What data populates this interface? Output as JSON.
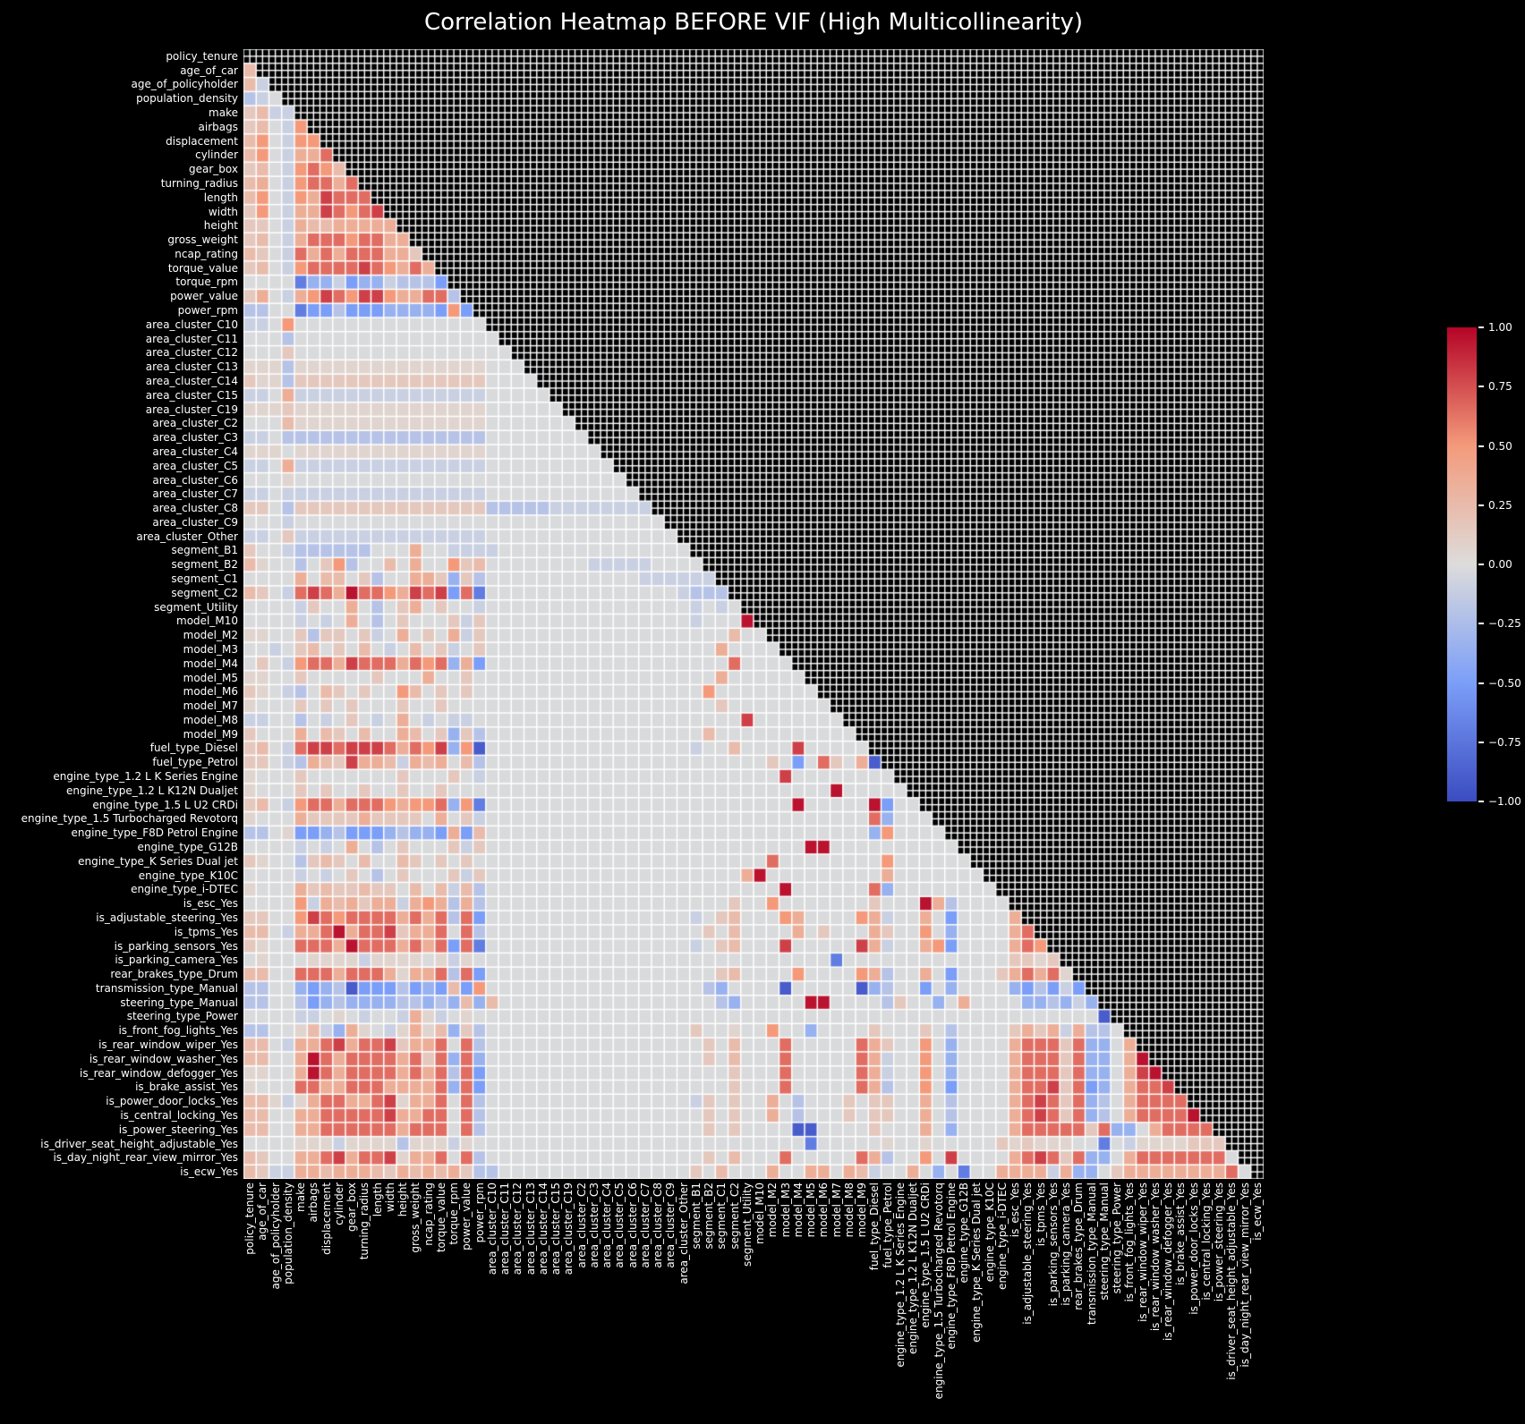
{
  "title": "Correlation Heatmap BEFORE VIF (High Multicollinearity)",
  "chart_data": {
    "type": "heatmap",
    "title": "Correlation Heatmap BEFORE VIF (High Multicollinearity)",
    "mask": "upper triangle including diagonal (shown as black cells with fine white grid)",
    "legend_position": "right colorbar",
    "grid": "white cell borders",
    "value_range": [
      -1,
      1
    ],
    "variables": [
      "policy_tenure",
      "age_of_car",
      "age_of_policyholder",
      "population_density",
      "make",
      "airbags",
      "displacement",
      "cylinder",
      "gear_box",
      "turning_radius",
      "length",
      "width",
      "height",
      "gross_weight",
      "ncap_rating",
      "torque_value",
      "torque_rpm",
      "power_value",
      "power_rpm",
      "area_cluster_C10",
      "area_cluster_C11",
      "area_cluster_C12",
      "area_cluster_C13",
      "area_cluster_C14",
      "area_cluster_C15",
      "area_cluster_C19",
      "area_cluster_C2",
      "area_cluster_C3",
      "area_cluster_C4",
      "area_cluster_C5",
      "area_cluster_C6",
      "area_cluster_C7",
      "area_cluster_C8",
      "area_cluster_C9",
      "area_cluster_Other",
      "segment_B1",
      "segment_B2",
      "segment_C1",
      "segment_C2",
      "segment_Utility",
      "model_M10",
      "model_M2",
      "model_M3",
      "model_M4",
      "model_M5",
      "model_M6",
      "model_M7",
      "model_M8",
      "model_M9",
      "fuel_type_Diesel",
      "fuel_type_Petrol",
      "engine_type_1.2 L K Series Engine",
      "engine_type_1.2 L K12N Dualjet",
      "engine_type_1.5 L U2 CRDi",
      "engine_type_1.5 Turbocharged Revotorq",
      "engine_type_F8D Petrol Engine",
      "engine_type_G12B",
      "engine_type_K Series Dual jet",
      "engine_type_K10C",
      "engine_type_i-DTEC",
      "is_esc_Yes",
      "is_adjustable_steering_Yes",
      "is_tpms_Yes",
      "is_parking_sensors_Yes",
      "is_parking_camera_Yes",
      "rear_brakes_type_Drum",
      "transmission_type_Manual",
      "steering_type_Manual",
      "steering_type_Power",
      "is_front_fog_lights_Yes",
      "is_rear_window_wiper_Yes",
      "is_rear_window_washer_Yes",
      "is_rear_window_defogger_Yes",
      "is_brake_assist_Yes",
      "is_power_door_locks_Yes",
      "is_central_locking_Yes",
      "is_power_steering_Yes",
      "is_driver_seat_height_adjustable_Yes",
      "is_day_night_rear_view_mirror_Yes",
      "is_ecw_Yes"
    ],
    "colormap": {
      "name": "coolwarm",
      "anchors": [
        {
          "t": 0.0,
          "color": "#3b4cc0"
        },
        {
          "t": 0.25,
          "color": "#7b9ef8"
        },
        {
          "t": 0.5,
          "color": "#dddcdb"
        },
        {
          "t": 0.75,
          "color": "#f49a7b"
        },
        {
          "t": 1.0,
          "color": "#b40426"
        }
      ]
    },
    "colorbar": {
      "ticks": [
        "1.00",
        "0.75",
        "0.50",
        "0.25",
        "0.00",
        "−0.25",
        "−0.50",
        "−0.75",
        "−1.00"
      ],
      "top_value": 1.0,
      "bottom_value": -1.0
    },
    "value_levels": {
      "A": -0.9,
      "B": -0.7,
      "C": -0.5,
      "D": -0.35,
      "E": -0.2,
      "F": -0.1,
      "G": -0.02,
      "H": 0.06,
      "I": 0.15,
      "J": 0.25,
      "K": 0.35,
      "L": 0.5,
      "M": 0.65,
      "N": 0.8,
      "O": 0.95
    },
    "matrix_rle": [
      "",
      "1J",
      "1J 1F",
      "1E 1F 1G",
      "1I 1J 2F",
      "1I 1J 1G 1F 1L",
      "1J 1L 1G 1F 2L",
      "1J 1L 1G 1F 2K 1M",
      "1I 1J 1G 1F 1L 1M 1L 1J",
      "1J 1K 1G 1F 1L 2M 1K 1M",
      "1J 1L 1G 1F 1L 1K 1N 3M",
      "1I 1L 1G 1F 2K 1N 1M 1L 1M 1N",
      "2I 1G 1F 1K 2J 5K",
      "1I 1J 1G 1F 1K 3M 1L 2M 2K",
      "1J 1I 1G 1F 1M 1K 1M 1K 3M 2K 1I",
      "1I 1J 1G 1F 1L 4M 1N 1M 1L 1K 1M 1K",
      "4G 1B 2D 1F 1C 2D 1F 3E 1C",
      "1I 1K 1G 1F 1K 1L 1N 1M 1L 2N 1L 2K 2M 1E",
      "2E 2G 1B 2C 1E 3C 4D 1C 1L 1C",
      "2F 1G 1L 15G",
      "3G 1E 16G",
      "3G 1I 17G",
      "3H 1E 15H 3G",
      "1I 2H 1E 15I 4G",
      "2F 1G 1K 15F 5G",
      "3H 1I 15H 6G",
      "3G 1J 15H 7G",
      "2F 1G 1E 15E 8G",
      "3H 1G 15H 9G",
      "2F 1G 1K 15F 10G",
      "3G 1H 26G",
      "2F 1G 1F 15F 12G",
      "2I 1G 1E 15I 5E 8F",
      "3G 1F 29G",
      "2F 1G 1I 15F 15G",
      "1I 2G 1F 6E 3G 1K 2G 4F 15G",
      "1J 1H 2G 1E 1G 1I 1L 1E 2G 1J 1G 1K 2G 1L 1I 1J 8G 5F 4G",
      "4G 1K 1G 2J 1G 1I 1E 2G 2K 1I 1D 1I 1E 12G 6F",
      "1J 1I 1G 1F 1M 1N 1M 1K 1O 2M 1L 1K 1N 1M 1N 1C 1M 1B 15G 1F 3E",
      "4G 1F 1I 2G 1K 1G 1E 1G 1I 1K 1G 1I 2G 1F 16G 1F 1G 1F 1G",
      "4G 1F 1G 1F 1G 1K 1G 1E 1G 1I 3G 1I 1F 1I 16G 1F 3G 1O",
      "2H 2G 1I 1E 2I 1G 1I 1F 1G 1K 1G 1I 1G 1K 1F 1I 19G 1J 2G",
      "2G 1F 1G 1I 1J 1G 1I 1G 1J 1G 1F 1G 1J 1G 1I 1F 1G 1I 18G 1K 4G",
      "1G 1I 1G 1F 1L 2M 1K 1N 3M 1K 1M 1L 1M 1D 1K 1C 19G 1M 4G",
      "2H 2G 1I 5G 1I 3G 1K 2G 1I 1G 18G 1K 6G",
      "1I 1H 1G 1F 1E 1G 1J 1I 1G 1I 2G 1L 1J 1G 1I 1G 1I 1G 17G 1L 8G",
      "1H 3G 1I 1G 1I 1G 1I 3G 1I 2G 1I 3G 18G 1I 8G",
      "2F 2G 1E 1G 1F 1G 1I 1G 1F 1G 1K 1G 1F 1G 2F 1G 20G 1N 7G",
      "1I 3G 1K 1G 1J 1I 1G 1J 2G 1K 1J 1G 1I 1D 1I 1E 17G 1J 11G",
      "1I 1J 1G 1F 1M 2N 1M 3N 1M 1K 1M 1L 1N 1D 1L 1A 16G 1F 2G 1J 4G 1N 5G",
      "2I 1G 1F 1E 1K 1J 1I 1N 2K 1J 1F 1K 1J 1K 1G 1J 1E 22G 1I 1G 1C 1G 1M 1I 1G 1K 1A",
      "1H 3G 1I 7G 1I 3G 1I 1G 1F 23G 1N 8G",
      "1H 3G 1I 1G 1I 2G 1I 2G 1I 2G 1I 3G 27G 1O 5G",
      "1I 1J 1G 1F 1L 2M 1K 3M 1L 1K 2L 1M 1D 1L 1B 24G 1O 5G 1O 1C 2G",
      "1H 3G 1K 4I 1K 4I 1G 1K 1G 1I 1F 29G 1G 1M 1D 3G",
      "2E 1G 1H 2C 1D 1E 3C 1D 1E 2D 1C 1K 1C 1J 30G 1D 1L 4G",
      "4G 1F 1G 1F 1G 1K 1G 1E 1G 1I 3G 1I 1F 1I 25G 2O 10G",
      "1I 1H 2G 1E 1I 1J 1I 1G 1J 2G 1J 1I 1G 1I 1G 1I 1G 22G 1M 8G 1L 6G",
      "4G 1F 1G 1F 1G 1I 1G 1E 1G 1I 3G 1I 1F 1I 20G 1K 1O 9G 1K 7G",
      "1H 3G 1K 1I 1J 2I 1J 2I 1G 1J 1G 1J 1F 1J 1E 23G 1O 6G 1M 1D 8G",
      "4G 1L 1F 1K 1J 1K 1I 2K 1F 1K 1L 1K 1E 1K 1E 19G 1I 2G 1L 7G 1I 3G 1O 1K 1E 4G",
      "2I 2G 1L 1N 1M 1L 4M 1K 1M 1K 1M 1E 1M 1C 16G 1F 1G 1I 1J 3G 1L 1K 4G 1L 1K 1F 2G 1K 1G 1C 4G 1K",
      "2J 1G 1F 2K 1M 1O 1K 2M 1N 1I 2K 1M 1G 1M 1E 16G 1G 1I 1G 1J 4G 1K 1G 1I 3G 1K 1I 2G 1L 1G 1D 4G 1K 1M",
      "1I 1H 2G 3M 1K 1O 3M 1K 1M 1K 1M 1C 1M 1B 16G 1F 1G 1I 1J 3G 1N 5G 1N 1K 1F 2G 1K 1L 1C 4G 1K 1M 1L",
      "1G 1H 3G 4H 1F 4H 1G 1H 1F 1H 1G 27G 1B 13G 2I 1H 1I",
      "2J 2G 3M 1K 3M 1K 1H 2K 1M 1E 1M 1C 18G 1I 1J 4G 1L 4G 1L 1K 1E 2G 1K 1G 1C 3G 1I 1K 1M 1K 1M 1H",
      "2E 2G 1D 1C 1D 1E 1A 3C 1E 1C 1D 1C 1J 1C 1L 17G 1E 1D 4G 1A 5G 1A 1D 1E 2G 1C 1G 1D 4G 1D 1C 1E 1C 1F 1C",
      "2E 2G 1E 1C 1D 1E 4D 2E 1D 1E 1D 1J 1D 1J 17G 1E 1D 5G 2O 4G 1E 1I 2G 1D 1G 1K 4G 2D 1E 1D 1F 1D 1M",
      "4G 2F 1G 1H 1G 1F 2G 1F 1K 1H 1F 1G 1H 1G 48G 1A",
      "2E 2G 1H 1J 1F 1D 1K 1H 1G 1F 1H 1K 1H 1J 1D 1I 1E 16G 1I 2G 1H 2G 1L 2G 1D 4G 1I 3G 1I 1G 1E 4G 1I 1K 1I 1K 1F 1K 2E 1G",
      "2J 1G 1F 2K 1M 1N 1K 2M 1N 1I 2K 1M 1G 1M 1E 16G 1G 1I 1G 1J 3G 1M 5G 1M 1K 1I 2G 1L 1G 1D 4G 1K 3M 1I 1M 2D 1G 1K",
      "2J 2G 1K 1O 1M 1K 4M 1K 1M 1I 1M 1D 1M 1D 16G 1G 1I 1G 1J 3G 1M 5G 1M 1K 1F 2G 1L 1G 1D 4G 1K 3M 1I 1M 2D 1G 1K 1O",
      "2H 2G 1K 1O 1M 1K 4M 1K 1M 1K 1M 1E 1M 1C 19G 1I 3G 1M 5G 1M 1K 1F 2G 1L 1G 1D 4G 1K 3M 1I 1M 2D 1G 1K 1N 1O",
      "1H 3G 2M 2K 3M 4K 1M 1D 1M 1C 19G 1I 3G 1M 5G 1M 1K 1E 2G 1L 1G 1C 4G 1K 2M 1N 1I 1M 1C 1D 1G 1K 2M 1N",
      "2J 1H 1F 1H 1K 2M 2K 1M 1N 1H 2K 1M 1G 1M 1E 16G 1F 1I 1G 1I 2G 1K 1G 1E 3G 1I 1G 2I 2G 1K 1G 1E 4G 1K 1M 1N 1M 1I 1M 1D 1E 1G 1K 4M",
      "2J 2G 2K 3M 2M 1N 2K 2M 1G 1M 1E 16G 1G 1I 1G 1I 2G 1K 1G 1E 3G 1I 1G 2I 2G 1K 1G 1E 4G 1K 1M 1N 1M 1I 1M 1D 1E 1G 1K 4M 1O",
      "2J 2G 2K 5M 1M 1K 3M 1G 1M 1E 17G 1I 1G 1I 4G 2A 4G 1I 3G 1K 1G 1D 4G 1K 5M 1I 1M 2D 1G 1K 7M",
      "4G 3H 1F 4H 1E 3H 1F 1H 1G 21G 4G 1B 4G 1G 1H 2G 1H 5G 1I 1H 1I 3H 2G 1B 1G 1F 4H 3I",
      "1J 1I 2G 2K 1M 1N 1K 2M 1N 1H 2K 1M 1G 1M 1E 16G 1G 1I 1G 1J 3G 1M 5G 1M 1K 1E 2G 1L 1G 1N 4G 1K 1M 1N 1M 1I 1M 2D 1G 1K 7M 1G",
      "1J 1I 2F 2K 1J 3K 1J 1I 1K 1J 1K 1J 1K 1I 1E 1E 15G 1I 1G 1J 3G 1K 2G 2K 1G 1K 1J 1F 2G 1K 1G 1D 1G 1B 2G 4K 1F 1K 2D 1G 1I 8K 1M"
    ]
  }
}
